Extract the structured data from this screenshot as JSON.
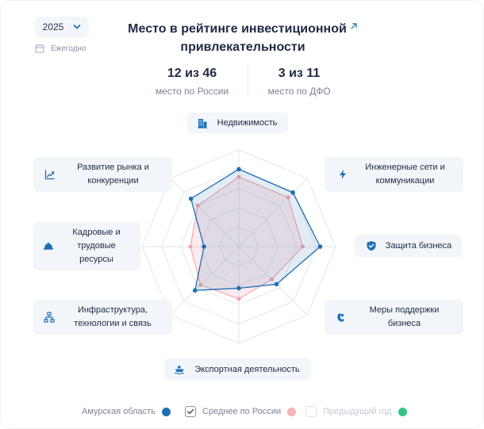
{
  "filters": {
    "year": "2025",
    "period": "Ежегодно"
  },
  "header": {
    "title_line1": "Место в рейтинге инвестиционной",
    "title_line2": "привлекательности"
  },
  "stats": [
    {
      "value": "12 из 46",
      "label": "место по России"
    },
    {
      "value": "3 из 11",
      "label": "место по ДФО"
    }
  ],
  "categories": {
    "realty": "Недвижимость",
    "engineering_1": "Инженерные сети и",
    "engineering_2": "коммуникации",
    "protection": "Защита бизнеса",
    "support_1": "Меры поддержки",
    "support_2": "бизнеса",
    "export": "Экспортная деятельность",
    "infra_1": "Инфраструктура,",
    "infra_2": "технологии и связь",
    "hr_1": "Кадровые и",
    "hr_2": "трудовые",
    "hr_3": "ресурсы",
    "market_1": "Развитие рынка и",
    "market_2": "конкуренции"
  },
  "legend": {
    "region": "Амурская область",
    "russia_avg": "Среднее по России",
    "prev_year": "Предыдущий год"
  },
  "colors": {
    "region": "#1f6fb5",
    "russia_avg": "#f2a3a8",
    "prev_year": "#35c48a",
    "grid": "#e3e6ec",
    "chip_bg": "#f2f5fa",
    "icon": "#1f6fb5"
  },
  "chart_data": {
    "type": "radar",
    "axes": [
      "Недвижимость",
      "Инженерные сети и коммуникации",
      "Защита бизнеса",
      "Меры поддержки бизнеса",
      "Экспортная деятельность",
      "Инфраструктура, технологии и связь",
      "Кадровые и трудовые ресурсы",
      "Развитие рынка и конкуренции"
    ],
    "range": [
      0,
      5
    ],
    "grid_levels": 5,
    "series": [
      {
        "name": "Амурская область",
        "values": [
          4.0,
          3.95,
          4.2,
          2.75,
          2.15,
          3.2,
          1.8,
          3.5
        ],
        "visible": true
      },
      {
        "name": "Среднее по России",
        "values": [
          3.6,
          3.6,
          3.3,
          2.4,
          2.7,
          2.8,
          2.5,
          3.0
        ],
        "visible": true
      },
      {
        "name": "Предыдущий год",
        "values": [],
        "visible": false
      }
    ]
  }
}
